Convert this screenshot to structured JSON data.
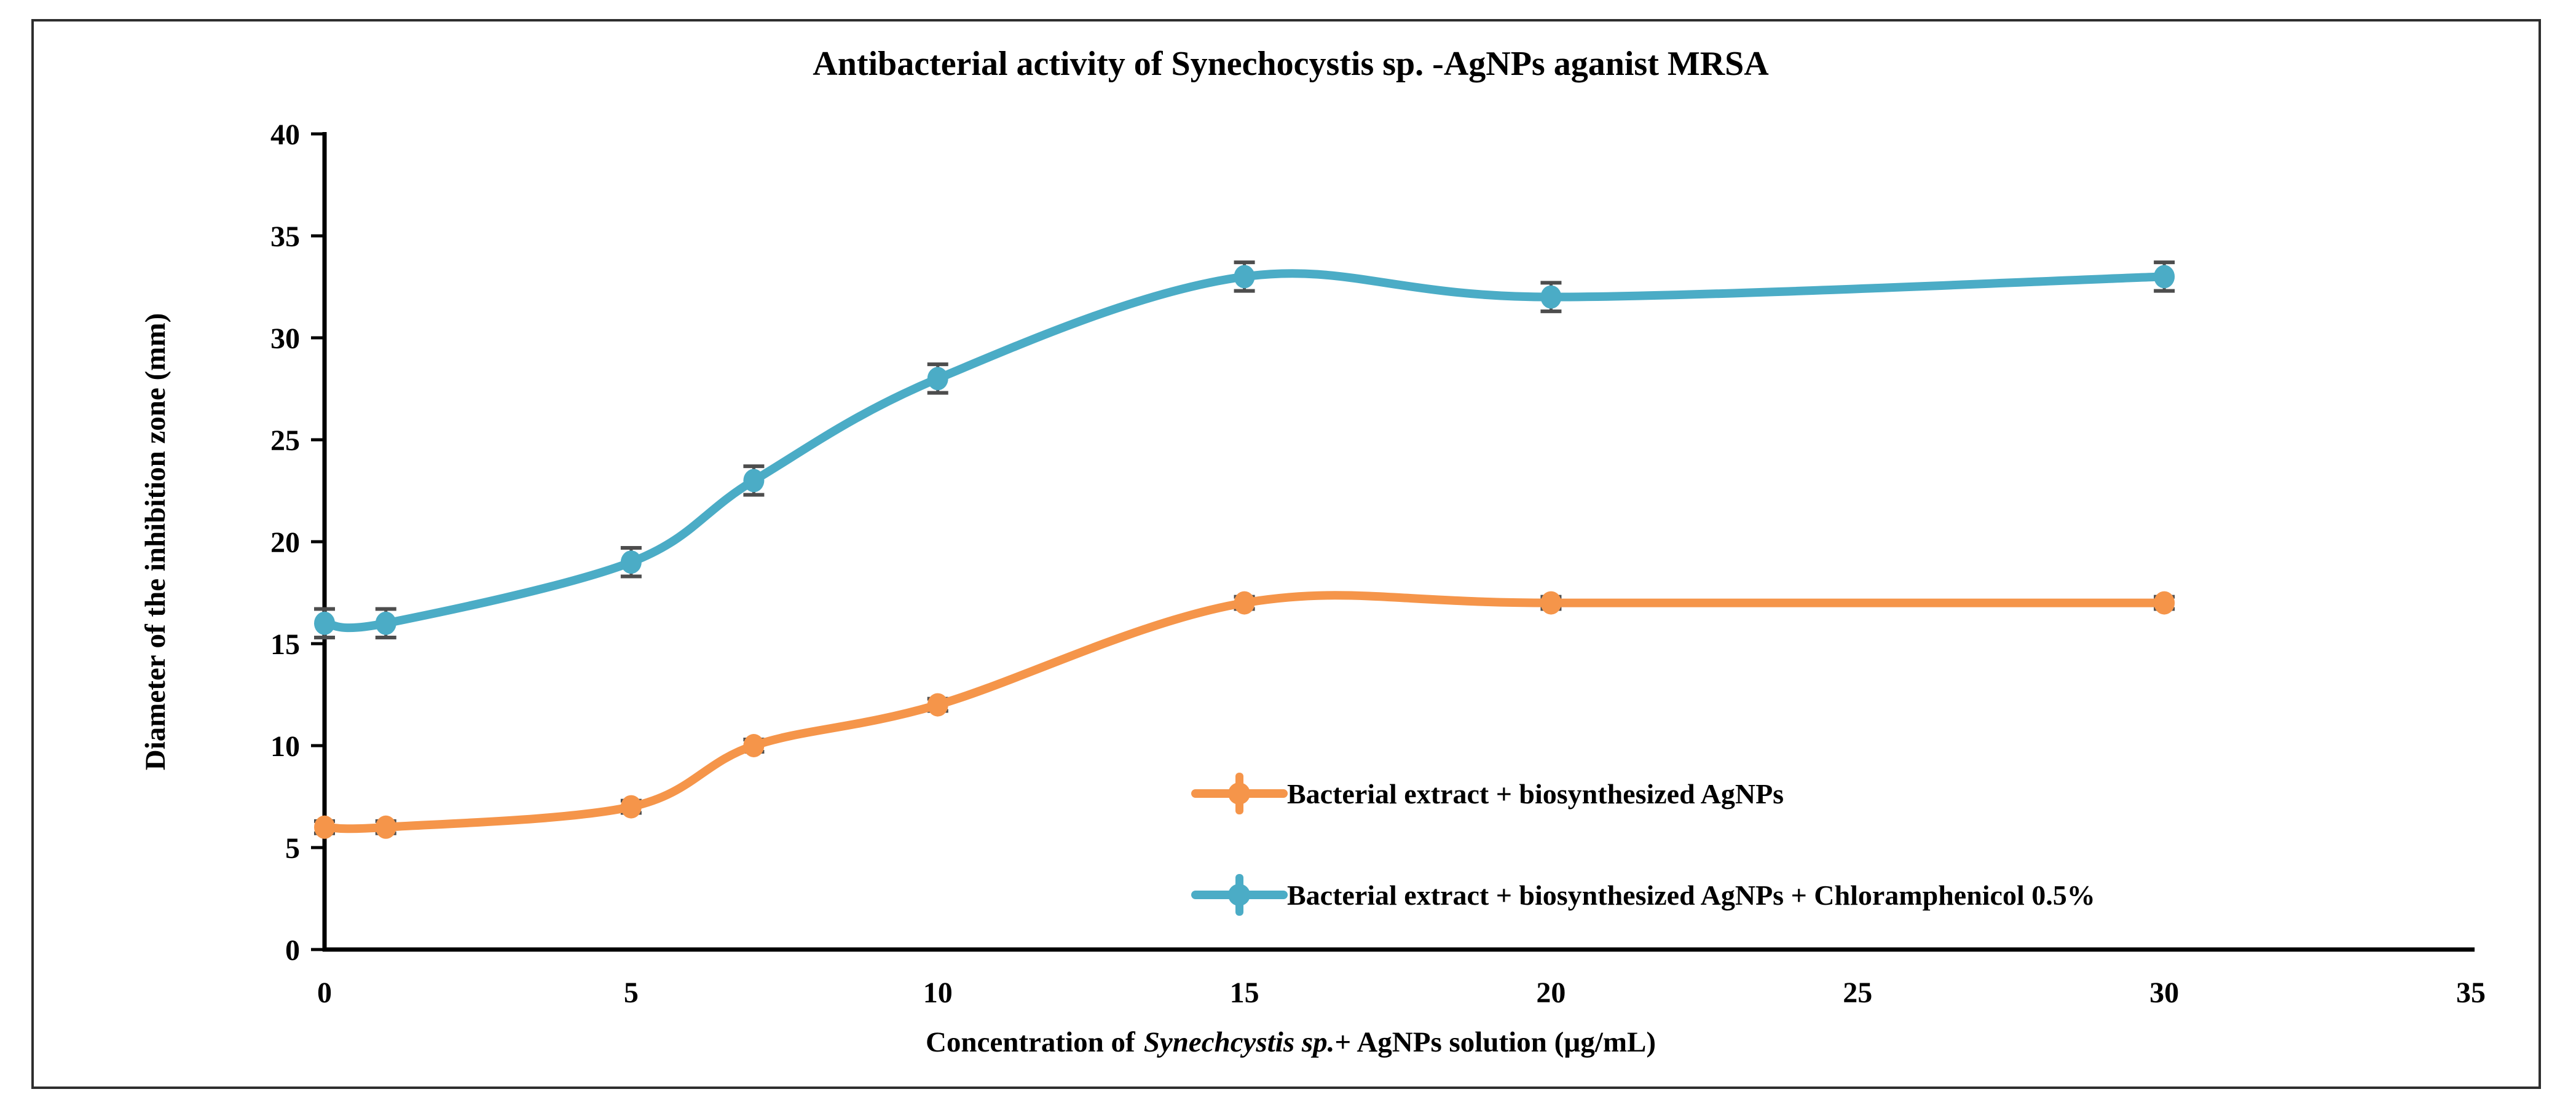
{
  "figure": {
    "background": "#ffffff",
    "border_color": "#2e2e2e"
  },
  "chart_data": {
    "type": "line",
    "title": "Antibacterial activity of Synechocystis sp. -AgNPs aganist MRSA",
    "xlabel_prefix": "Concentration of",
    "xlabel_italic": "Synechcystis sp.",
    "xlabel_suffix": "+ AgNPs solution (µg/mL)",
    "ylabel": "Diameter of the inhibition zone (mm)",
    "x": [
      0,
      1,
      5,
      7,
      10,
      15,
      20,
      30
    ],
    "xlim": [
      0,
      35
    ],
    "ylim": [
      0,
      40
    ],
    "x_ticks": [
      0,
      5,
      10,
      15,
      20,
      25,
      30,
      35
    ],
    "y_ticks": [
      0,
      5,
      10,
      15,
      20,
      25,
      30,
      35,
      40
    ],
    "grid": false,
    "smooth_lines": true,
    "legend_position": "inside-lower-right",
    "error_bar_color": "#4d4d4d",
    "series": [
      {
        "name": "Bacterial extract + biosynthesized AgNPs",
        "color": "#F5954A",
        "values": [
          6,
          6,
          7,
          10,
          12,
          17,
          17,
          17
        ],
        "error": 0.3
      },
      {
        "name": "Bacterial extract + biosynthesized AgNPs + Chloramphenicol 0.5%",
        "color": "#4BACC6",
        "values": [
          16,
          16,
          19,
          23,
          28,
          33,
          32,
          33
        ],
        "error": 0.7
      }
    ]
  }
}
